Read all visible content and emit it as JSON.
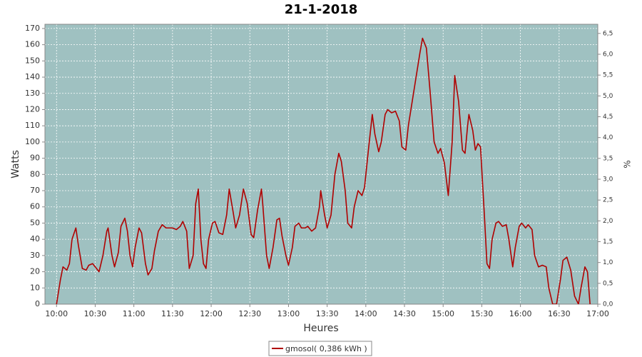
{
  "chart_data": {
    "type": "line",
    "title": "21-1-2018",
    "x_label": "Heures",
    "y_label": "Watts",
    "y2_label": "%",
    "x": [
      "10:00",
      "10:03",
      "10:05",
      "10:08",
      "10:10",
      "10:12",
      "10:15",
      "10:17",
      "10:20",
      "10:23",
      "10:25",
      "10:28",
      "10:31",
      "10:33",
      "10:36",
      "10:39",
      "10:40",
      "10:43",
      "10:45",
      "10:48",
      "10:50",
      "10:53",
      "10:55",
      "10:57",
      "10:59",
      "11:01",
      "11:04",
      "11:06",
      "11:09",
      "11:11",
      "11:14",
      "11:16",
      "11:19",
      "11:22",
      "11:25",
      "11:27",
      "11:30",
      "11:33",
      "11:36",
      "11:38",
      "11:41",
      "11:43",
      "11:46",
      "11:48",
      "11:50",
      "11:52",
      "11:54",
      "11:56",
      "11:58",
      "12:01",
      "12:03",
      "12:06",
      "12:09",
      "12:12",
      "12:14",
      "12:17",
      "12:19",
      "12:22",
      "12:25",
      "12:28",
      "12:31",
      "12:33",
      "12:36",
      "12:39",
      "12:40",
      "12:43",
      "12:45",
      "12:48",
      "12:51",
      "12:53",
      "12:55",
      "12:58",
      "13:00",
      "13:03",
      "13:05",
      "13:08",
      "13:10",
      "13:13",
      "13:15",
      "13:18",
      "13:21",
      "13:24",
      "13:25",
      "13:28",
      "13:30",
      "13:33",
      "13:36",
      "13:39",
      "13:41",
      "13:44",
      "13:46",
      "13:49",
      "13:51",
      "13:54",
      "13:57",
      "13:59",
      "14:02",
      "14:05",
      "14:07",
      "14:10",
      "14:12",
      "14:15",
      "14:17",
      "14:20",
      "14:23",
      "14:26",
      "14:28",
      "14:31",
      "14:33",
      "14:36",
      "14:39",
      "14:42",
      "14:44",
      "14:47",
      "14:50",
      "14:53",
      "14:56",
      "14:58",
      "15:01",
      "15:04",
      "15:07",
      "15:09",
      "15:12",
      "15:15",
      "15:17",
      "15:19",
      "15:20",
      "15:23",
      "15:25",
      "15:27",
      "15:29",
      "15:32",
      "15:34",
      "15:36",
      "15:38",
      "15:41",
      "15:43",
      "15:46",
      "15:49",
      "15:51",
      "15:54",
      "15:56",
      "15:59",
      "16:01",
      "16:04",
      "16:06",
      "16:09",
      "16:11",
      "16:14",
      "16:17",
      "16:20",
      "16:22",
      "16:25",
      "16:28",
      "16:31",
      "16:33",
      "16:36",
      "16:39",
      "16:42",
      "16:45",
      "16:47",
      "16:50",
      "16:52",
      "16:54"
    ],
    "series": [
      {
        "name": "gmosol( 0,386 kWh )",
        "color": "#b00000",
        "values": [
          0,
          15,
          23,
          21,
          25,
          40,
          47,
          36,
          22,
          21,
          24,
          25,
          22,
          20,
          30,
          45,
          47,
          30,
          23,
          32,
          48,
          53,
          45,
          30,
          23,
          35,
          47,
          44,
          25,
          18,
          22,
          33,
          45,
          49,
          47,
          47,
          47,
          46,
          48,
          51,
          45,
          22,
          30,
          62,
          71,
          40,
          25,
          22,
          40,
          50,
          51,
          44,
          43,
          55,
          71,
          57,
          47,
          55,
          71,
          62,
          43,
          41,
          58,
          71,
          62,
          30,
          22,
          35,
          52,
          53,
          42,
          30,
          24,
          35,
          48,
          50,
          47,
          47,
          48,
          45,
          47,
          60,
          70,
          55,
          47,
          55,
          80,
          93,
          88,
          70,
          50,
          47,
          60,
          70,
          67,
          72,
          95,
          117,
          105,
          94,
          100,
          117,
          120,
          118,
          119,
          113,
          97,
          95,
          110,
          125,
          140,
          155,
          164,
          158,
          130,
          100,
          93,
          96,
          87,
          67,
          100,
          141,
          125,
          95,
          93,
          110,
          117,
          107,
          95,
          99,
          97,
          55,
          25,
          22,
          40,
          50,
          51,
          48,
          49,
          40,
          23,
          35,
          48,
          50,
          47,
          49,
          46,
          30,
          23,
          24,
          23,
          10,
          0,
          0,
          15,
          27,
          29,
          21,
          5,
          0,
          10,
          23,
          20,
          0
        ]
      }
    ],
    "xlim": [
      "09:51",
      "17:00"
    ],
    "xticks": [
      "10:00",
      "10:30",
      "11:00",
      "11:30",
      "12:00",
      "12:30",
      "13:00",
      "13:30",
      "14:00",
      "14:30",
      "15:00",
      "15:30",
      "16:00",
      "16:30",
      "17:00"
    ],
    "ylim": [
      0,
      172.6
    ],
    "yticks": [
      0,
      10,
      20,
      30,
      40,
      50,
      60,
      70,
      80,
      90,
      100,
      110,
      120,
      130,
      140,
      150,
      160,
      170
    ],
    "y2lim": [
      0,
      6.72
    ],
    "y2ticks": [
      {
        "value": 0,
        "label": "0,0"
      },
      {
        "value": 0.5,
        "label": "0,5"
      },
      {
        "value": 1,
        "label": "1,0"
      },
      {
        "value": 1.5,
        "label": "1,5"
      },
      {
        "value": 2,
        "label": "2,0"
      },
      {
        "value": 2.5,
        "label": "2,5"
      },
      {
        "value": 3,
        "label": "3,0"
      },
      {
        "value": 3.5,
        "label": "3,5"
      },
      {
        "value": 4,
        "label": "4,0"
      },
      {
        "value": 4.5,
        "label": "4,5"
      },
      {
        "value": 5,
        "label": "5,0"
      },
      {
        "value": 5.5,
        "label": "5,5"
      },
      {
        "value": 6,
        "label": "6,0"
      },
      {
        "value": 6.5,
        "label": "6,5"
      }
    ],
    "grid": true,
    "legend": "bottom",
    "background": "#9fc1c1"
  }
}
